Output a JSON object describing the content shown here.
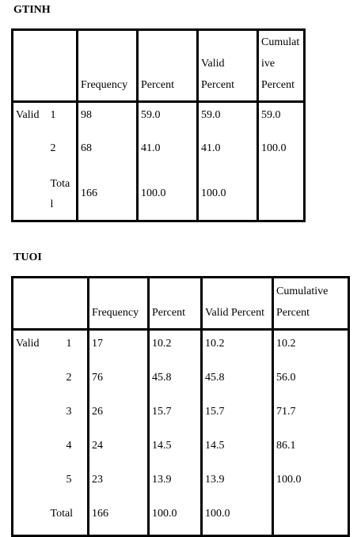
{
  "tables": [
    {
      "title": "GTINH",
      "headers": [
        "Frequency",
        "Percent",
        "Valid Percent",
        "Cumulative Percent"
      ],
      "header_lines": [
        [
          "Frequency"
        ],
        [
          "Percent"
        ],
        [
          "Valid",
          "Percent"
        ],
        [
          "Cumulat",
          "ive",
          "Percent"
        ]
      ],
      "group_label": "Valid",
      "rows": [
        {
          "label": "1",
          "frequency": "98",
          "percent": "59.0",
          "valid_percent": "59.0",
          "cumulative_percent": "59.0"
        },
        {
          "label": "2",
          "frequency": "68",
          "percent": "41.0",
          "valid_percent": "41.0",
          "cumulative_percent": "100.0"
        },
        {
          "label": "Total",
          "label_lines": [
            "Tota",
            "l"
          ],
          "frequency": "166",
          "percent": "100.0",
          "valid_percent": "100.0",
          "cumulative_percent": ""
        }
      ]
    },
    {
      "title": "TUOI",
      "headers": [
        "Frequency",
        "Percent",
        "Valid Percent",
        "Cumulative Percent"
      ],
      "header_lines": [
        [
          "Frequency"
        ],
        [
          "Percent"
        ],
        [
          "Valid Percent"
        ],
        [
          "Cumulative",
          "Percent"
        ]
      ],
      "group_label": "Valid",
      "rows": [
        {
          "label": "1",
          "frequency": "17",
          "percent": "10.2",
          "valid_percent": "10.2",
          "cumulative_percent": "10.2"
        },
        {
          "label": "2",
          "frequency": "76",
          "percent": "45.8",
          "valid_percent": "45.8",
          "cumulative_percent": "56.0"
        },
        {
          "label": "3",
          "frequency": "26",
          "percent": "15.7",
          "valid_percent": "15.7",
          "cumulative_percent": "71.7"
        },
        {
          "label": "4",
          "frequency": "24",
          "percent": "14.5",
          "valid_percent": "14.5",
          "cumulative_percent": "86.1"
        },
        {
          "label": "5",
          "frequency": "23",
          "percent": "13.9",
          "valid_percent": "13.9",
          "cumulative_percent": "100.0"
        },
        {
          "label": "Total",
          "frequency": "166",
          "percent": "100.0",
          "valid_percent": "100.0",
          "cumulative_percent": ""
        }
      ]
    }
  ]
}
